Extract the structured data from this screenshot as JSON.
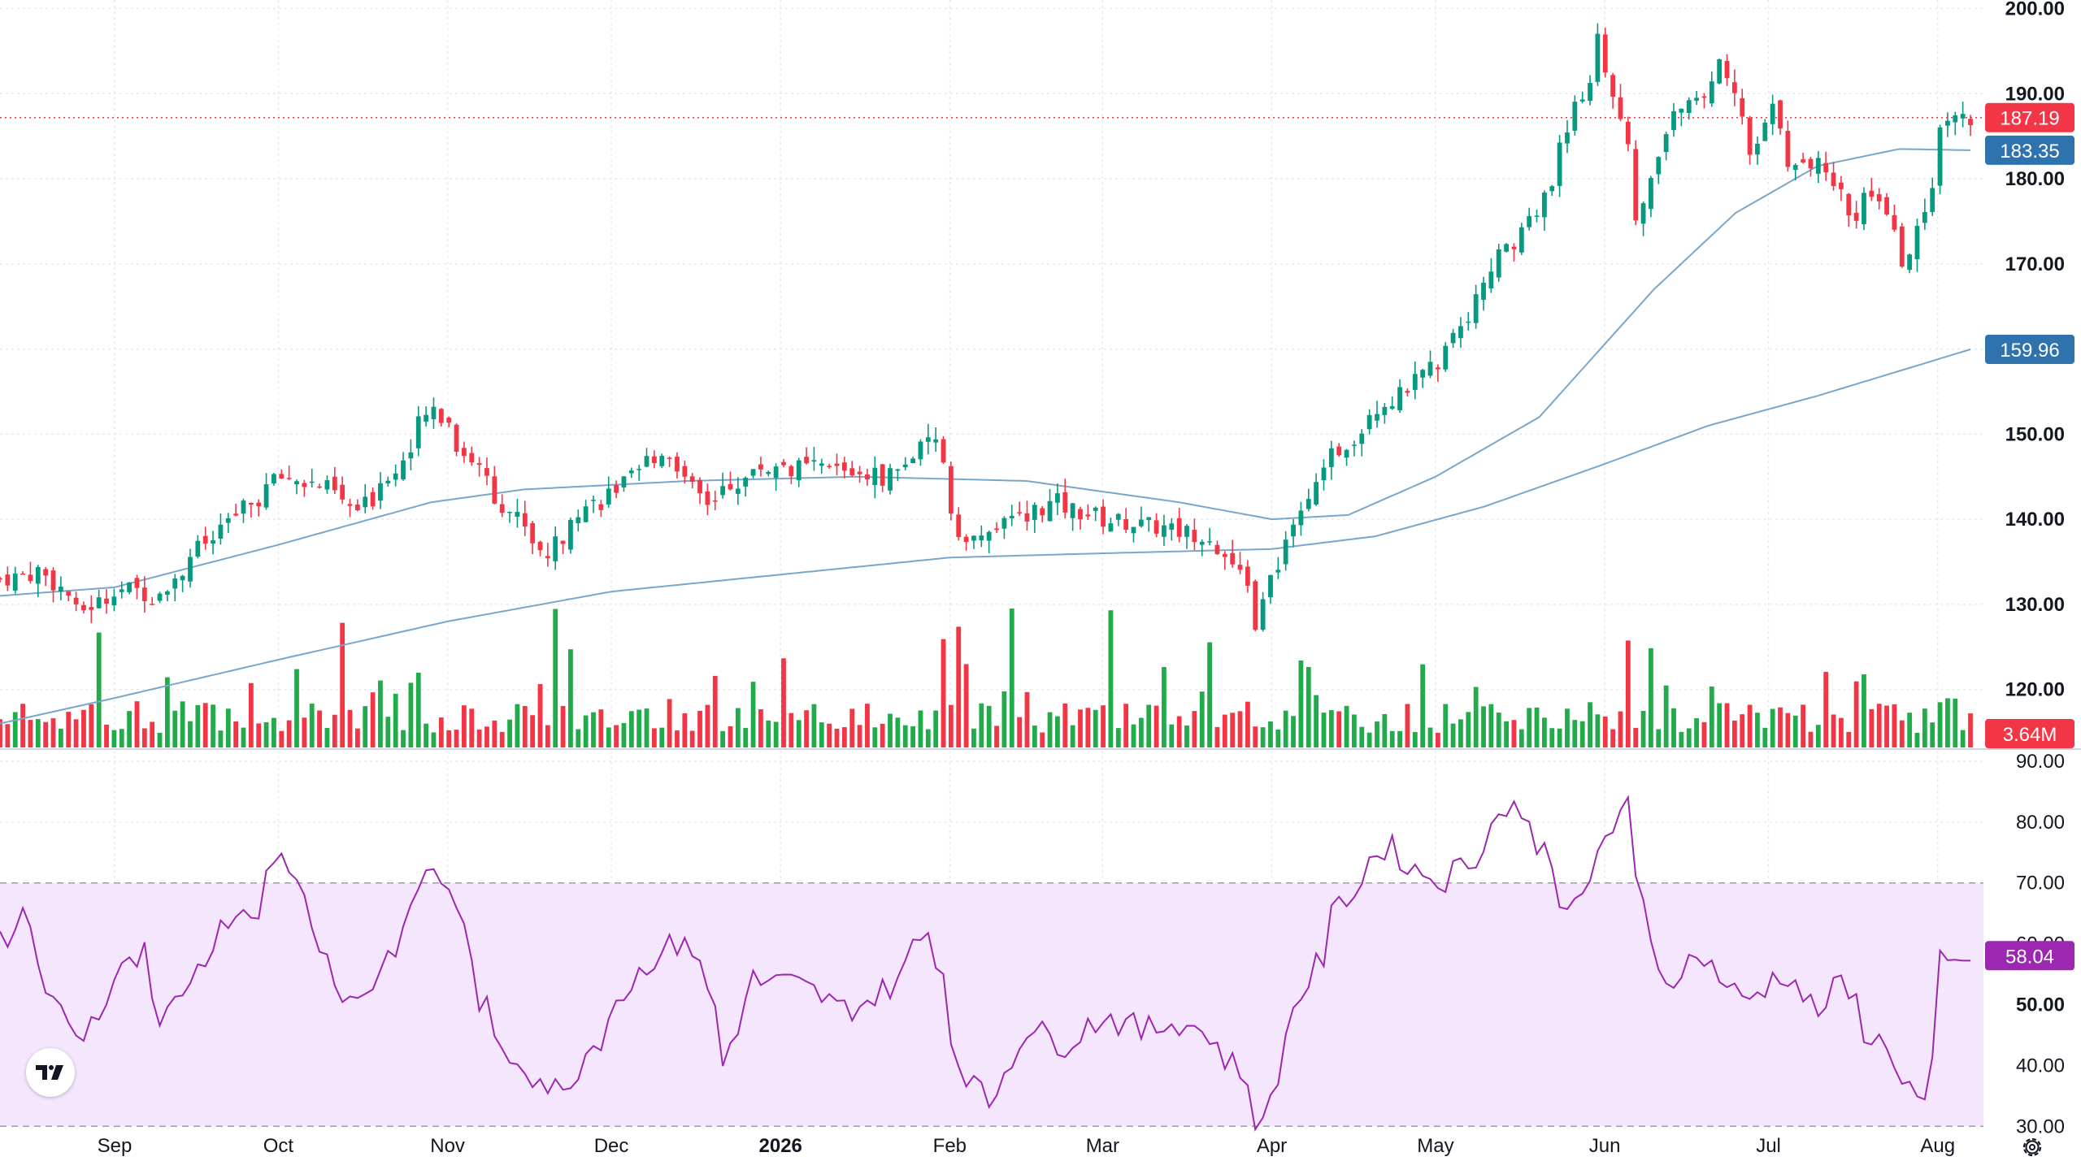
{
  "chart_data": [
    {
      "type": "candlestick",
      "title": "",
      "ylim": [
        113,
        201
      ],
      "yticks": [
        "120.00",
        "130.00",
        "140.00",
        "150.00",
        "160.00",
        "170.00",
        "180.00",
        "190.00",
        "200.00"
      ],
      "xticks": [
        {
          "label": "Sep",
          "date": "2025-09-01",
          "bold": false
        },
        {
          "label": "Oct",
          "date": "2025-10-01",
          "bold": false
        },
        {
          "label": "Nov",
          "date": "2025-11-01",
          "bold": false
        },
        {
          "label": "Dec",
          "date": "2025-12-01",
          "bold": false
        },
        {
          "label": "2026",
          "date": "2026-01-01",
          "bold": true
        },
        {
          "label": "Feb",
          "date": "2026-02-01",
          "bold": false
        },
        {
          "label": "Mar",
          "date": "2026-03-01",
          "bold": false
        },
        {
          "label": "Apr",
          "date": "2026-04-01",
          "bold": false
        },
        {
          "label": "May",
          "date": "2026-05-01",
          "bold": false
        },
        {
          "label": "Jun",
          "date": "2026-06-01",
          "bold": false
        },
        {
          "label": "Jul",
          "date": "2026-07-01",
          "bold": false
        },
        {
          "label": "Aug",
          "date": "2026-08-01",
          "bold": false
        }
      ],
      "date_range": [
        "2025-08-11",
        "2026-08-07"
      ],
      "close_anchors": [
        [
          "2025-08-11",
          133
        ],
        [
          "2025-08-18",
          134
        ],
        [
          "2025-08-25",
          129
        ],
        [
          "2025-09-01",
          132
        ],
        [
          "2025-09-08",
          131
        ],
        [
          "2025-09-15",
          136
        ],
        [
          "2025-09-22",
          140
        ],
        [
          "2025-10-01",
          145
        ],
        [
          "2025-10-08",
          144
        ],
        [
          "2025-10-15",
          141
        ],
        [
          "2025-10-22",
          146
        ],
        [
          "2025-10-29",
          153
        ],
        [
          "2025-11-05",
          147
        ],
        [
          "2025-11-12",
          141
        ],
        [
          "2025-11-19",
          136
        ],
        [
          "2025-11-24",
          141
        ],
        [
          "2025-12-01",
          143
        ],
        [
          "2025-12-10",
          148
        ],
        [
          "2025-12-18",
          142
        ],
        [
          "2025-12-28",
          146
        ],
        [
          "2026-01-10",
          146
        ],
        [
          "2026-01-20",
          145
        ],
        [
          "2026-01-29",
          149
        ],
        [
          "2026-02-04",
          137
        ],
        [
          "2026-02-10",
          139
        ],
        [
          "2026-02-20",
          142
        ],
        [
          "2026-03-01",
          140
        ],
        [
          "2026-03-12",
          139
        ],
        [
          "2026-03-22",
          138
        ],
        [
          "2026-03-30",
          128
        ],
        [
          "2026-04-03",
          137
        ],
        [
          "2026-04-10",
          145
        ],
        [
          "2026-04-20",
          153
        ],
        [
          "2026-04-28",
          156
        ],
        [
          "2026-05-05",
          162
        ],
        [
          "2026-05-12",
          170
        ],
        [
          "2026-05-20",
          176
        ],
        [
          "2026-05-27",
          188
        ],
        [
          "2026-06-01",
          197
        ],
        [
          "2026-06-04",
          186
        ],
        [
          "2026-06-08",
          175
        ],
        [
          "2026-06-12",
          185
        ],
        [
          "2026-06-18",
          190
        ],
        [
          "2026-06-23",
          193
        ],
        [
          "2026-06-29",
          182
        ],
        [
          "2026-07-02",
          188
        ],
        [
          "2026-07-07",
          181
        ],
        [
          "2026-07-12",
          183
        ],
        [
          "2026-07-17",
          175
        ],
        [
          "2026-07-21",
          178
        ],
        [
          "2026-07-27",
          169
        ],
        [
          "2026-07-31",
          178
        ],
        [
          "2026-08-03",
          187
        ],
        [
          "2026-08-07",
          187
        ]
      ],
      "ma_short": [
        [
          "2025-08-11",
          131
        ],
        [
          "2025-09-01",
          132
        ],
        [
          "2025-10-01",
          137
        ],
        [
          "2025-10-29",
          142
        ],
        [
          "2025-11-15",
          143.5
        ],
        [
          "2025-12-15",
          144.5
        ],
        [
          "2026-01-15",
          145
        ],
        [
          "2026-02-15",
          144.5
        ],
        [
          "2026-03-15",
          142
        ],
        [
          "2026-04-01",
          140
        ],
        [
          "2026-04-15",
          140.5
        ],
        [
          "2026-05-01",
          145
        ],
        [
          "2026-05-20",
          152
        ],
        [
          "2026-06-10",
          167
        ],
        [
          "2026-06-25",
          176
        ],
        [
          "2026-07-10",
          181.5
        ],
        [
          "2026-07-25",
          183.5
        ],
        [
          "2026-08-07",
          183.35
        ]
      ],
      "ma_long": [
        [
          "2025-08-11",
          116
        ],
        [
          "2025-09-01",
          119
        ],
        [
          "2025-10-01",
          123.5
        ],
        [
          "2025-11-01",
          128
        ],
        [
          "2025-12-01",
          131.5
        ],
        [
          "2026-01-01",
          133.5
        ],
        [
          "2026-02-01",
          135.5
        ],
        [
          "2026-03-01",
          136
        ],
        [
          "2026-04-01",
          136.5
        ],
        [
          "2026-04-20",
          138
        ],
        [
          "2026-05-10",
          141.5
        ],
        [
          "2026-06-01",
          146.5
        ],
        [
          "2026-06-20",
          151
        ],
        [
          "2026-07-10",
          154.5
        ],
        [
          "2026-08-07",
          159.96
        ]
      ],
      "volume": {
        "max_label": "3.64M",
        "spike_dates": [
          "2025-08-28",
          "2025-10-13",
          "2025-11-20",
          "2025-11-24",
          "2026-01-30",
          "2026-02-03",
          "2026-02-12",
          "2026-03-03",
          "2026-03-20",
          "2026-06-05",
          "2026-06-10"
        ]
      },
      "last_price": 187.19,
      "last_price_label": "187.19",
      "ma_short_label": "183.35",
      "ma_long_label": "159.96",
      "colors": {
        "up": "#089981",
        "down": "#f23645",
        "vol_up": "#22ab4b",
        "vol_down": "#f23645",
        "ma": "#7aa6c9",
        "price_line": "#f23645",
        "ma_pill": "#2f73ae"
      }
    },
    {
      "type": "line",
      "title": "",
      "ylim": [
        29.5,
        92
      ],
      "yticks": [
        "30.00",
        "40.00",
        "50.00",
        "60.00",
        "70.00",
        "80.00",
        "90.00"
      ],
      "band": [
        30,
        70
      ],
      "last_value": 58.04,
      "last_label": "58.04",
      "rsi_anchors": [
        [
          "2025-08-11",
          60
        ],
        [
          "2025-08-15",
          65
        ],
        [
          "2025-08-20",
          50
        ],
        [
          "2025-08-25",
          44
        ],
        [
          "2025-08-30",
          52
        ],
        [
          "2025-09-05",
          58
        ],
        [
          "2025-09-09",
          46
        ],
        [
          "2025-09-15",
          55
        ],
        [
          "2025-09-20",
          64
        ],
        [
          "2025-09-27",
          67
        ],
        [
          "2025-10-01",
          74
        ],
        [
          "2025-10-05",
          70
        ],
        [
          "2025-10-12",
          49
        ],
        [
          "2025-10-20",
          56
        ],
        [
          "2025-10-28",
          72
        ],
        [
          "2025-11-03",
          67
        ],
        [
          "2025-11-06",
          51
        ],
        [
          "2025-11-10",
          43
        ],
        [
          "2025-11-18",
          38
        ],
        [
          "2025-11-22",
          34
        ],
        [
          "2025-11-26",
          42
        ],
        [
          "2025-12-05",
          55
        ],
        [
          "2025-12-15",
          62
        ],
        [
          "2025-12-22",
          40
        ],
        [
          "2025-12-26",
          54
        ],
        [
          "2026-01-05",
          53
        ],
        [
          "2026-01-12",
          49
        ],
        [
          "2026-01-20",
          52
        ],
        [
          "2026-01-28",
          62
        ],
        [
          "2026-02-03",
          41
        ],
        [
          "2026-02-08",
          31
        ],
        [
          "2026-02-14",
          47
        ],
        [
          "2026-02-22",
          43
        ],
        [
          "2026-03-01",
          49
        ],
        [
          "2026-03-08",
          45
        ],
        [
          "2026-03-15",
          48
        ],
        [
          "2026-03-22",
          44
        ],
        [
          "2026-03-28",
          36
        ],
        [
          "2026-03-31",
          29.5
        ],
        [
          "2026-04-03",
          44
        ],
        [
          "2026-04-09",
          56
        ],
        [
          "2026-04-15",
          68
        ],
        [
          "2026-04-22",
          76
        ],
        [
          "2026-04-28",
          72
        ],
        [
          "2026-05-03",
          70
        ],
        [
          "2026-05-10",
          76
        ],
        [
          "2026-05-15",
          84
        ],
        [
          "2026-05-20",
          77
        ],
        [
          "2026-05-27",
          65
        ],
        [
          "2026-06-01",
          76
        ],
        [
          "2026-06-05",
          82
        ],
        [
          "2026-06-09",
          66
        ],
        [
          "2026-06-12",
          53
        ],
        [
          "2026-06-20",
          59
        ],
        [
          "2026-06-27",
          49
        ],
        [
          "2026-07-05",
          57
        ],
        [
          "2026-07-10",
          48
        ],
        [
          "2026-07-15",
          53
        ],
        [
          "2026-07-20",
          46
        ],
        [
          "2026-07-27",
          38
        ],
        [
          "2026-07-30",
          33
        ],
        [
          "2026-08-01",
          45
        ],
        [
          "2026-08-03",
          57
        ],
        [
          "2026-08-05",
          56
        ],
        [
          "2026-08-07",
          58.04
        ]
      ],
      "colors": {
        "line": "#9c27b0",
        "band_fill": "#f4e6fd",
        "band_border": "#9e9e9e",
        "pill": "#9c27b0"
      }
    }
  ]
}
